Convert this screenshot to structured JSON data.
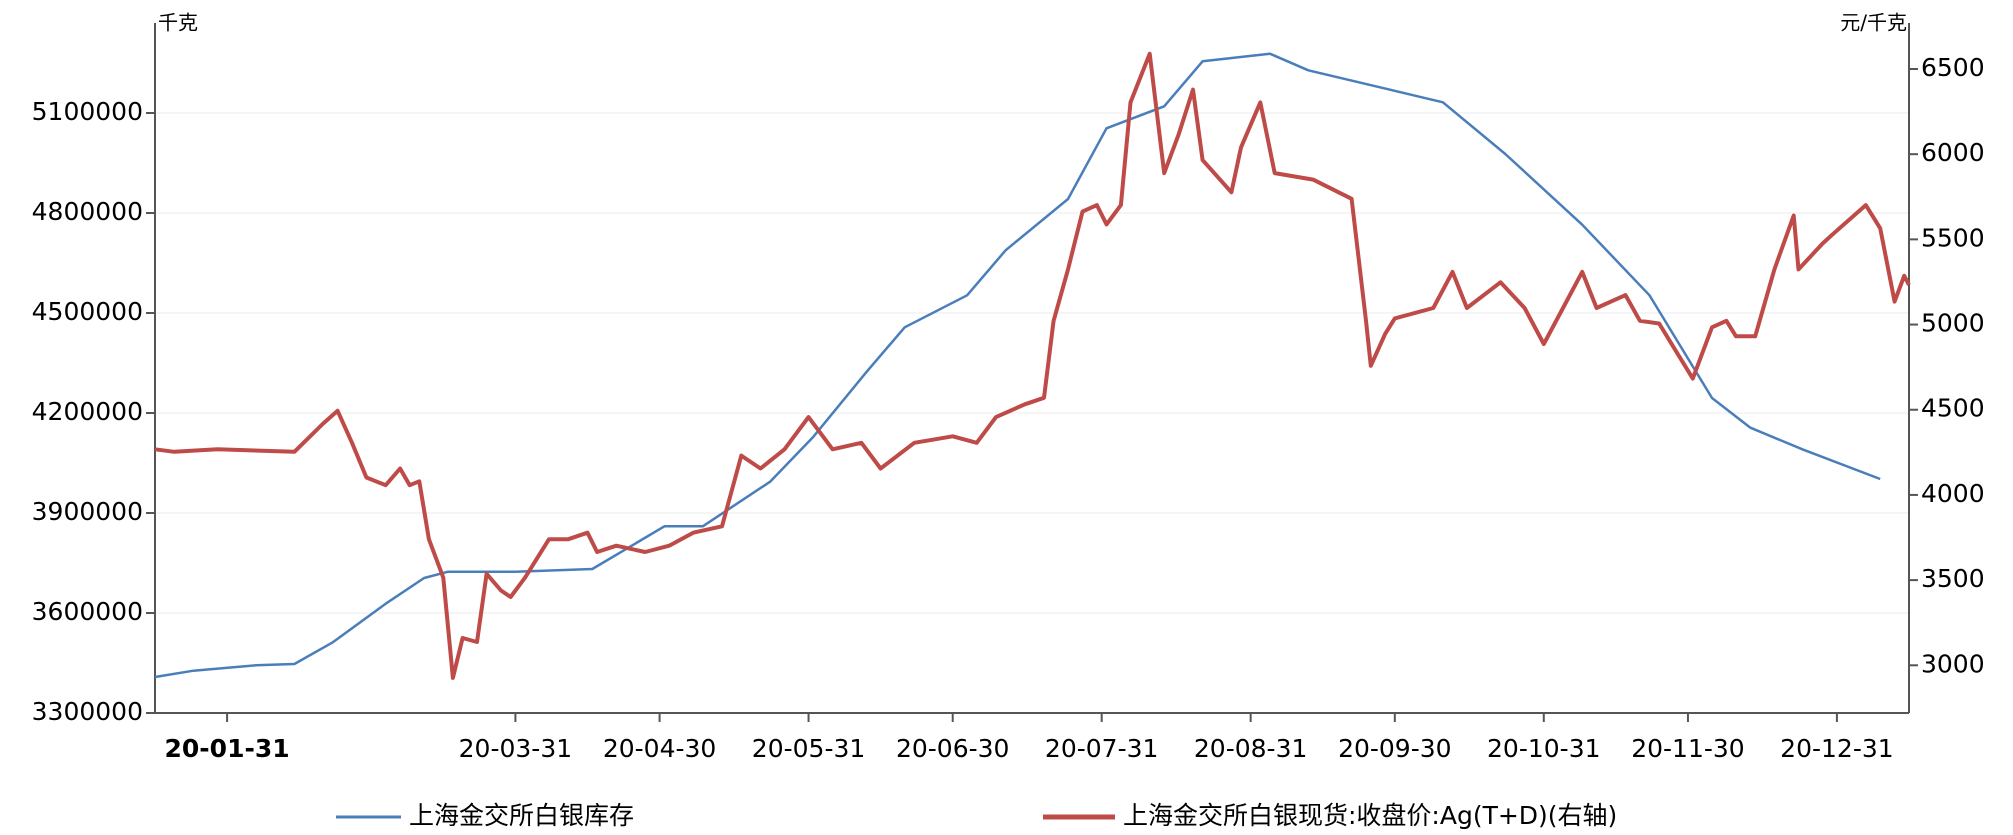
{
  "chart_data": {
    "type": "line",
    "ylabel": "千克",
    "y2label": "元/千克",
    "xlim": [
      "20-01-16",
      "21-01-15"
    ],
    "xticks": [
      "20-01-31",
      "20-03-31",
      "20-04-30",
      "20-05-31",
      "20-06-30",
      "20-07-31",
      "20-08-31",
      "20-09-30",
      "20-10-31",
      "20-11-30",
      "20-12-31"
    ],
    "ylim": [
      3300000,
      5370000
    ],
    "yticks": [
      3300000,
      3600000,
      3900000,
      4200000,
      4500000,
      4800000,
      5100000
    ],
    "y2lim": [
      2720,
      6770
    ],
    "y2ticks": [
      3000,
      3500,
      4000,
      4500,
      5000,
      5500,
      6000,
      6500
    ],
    "grid": true,
    "series": [
      {
        "name": "上海金交所白银库存",
        "color": "#4a7ebb",
        "x": [
          "20-01-16",
          "20-01-24",
          "20-02-06",
          "20-02-14",
          "20-02-22",
          "20-03-04",
          "20-03-12",
          "20-03-17",
          "20-03-31",
          "20-04-16",
          "20-04-24",
          "20-05-01",
          "20-05-09",
          "20-05-23",
          "20-06-01",
          "20-06-12",
          "20-06-20",
          "20-07-03",
          "20-07-11",
          "20-07-24",
          "20-08-01",
          "20-08-13",
          "20-08-21",
          "20-09-04",
          "20-09-12",
          "20-09-29",
          "20-10-10",
          "20-10-23",
          "20-11-08",
          "20-11-22",
          "20-12-05",
          "20-12-13",
          "20-12-24",
          "21-01-09"
        ],
        "values": [
          3408000,
          3427000,
          3443000,
          3447000,
          3512000,
          3628000,
          3705000,
          3724000,
          3724000,
          3732000,
          3800000,
          3860000,
          3860000,
          3994000,
          4129000,
          4322000,
          4457000,
          4553000,
          4688000,
          4842000,
          5054000,
          5120000,
          5255000,
          5278000,
          5228000,
          5170000,
          5132000,
          4977000,
          4765000,
          4553000,
          4245000,
          4156000,
          4090000,
          4002000
        ]
      },
      {
        "name": "上海金交所白银现货:收盘价:Ag(T+D)(右轴)",
        "color": "#be4b48",
        "axis": "y2",
        "x": [
          "20-01-16",
          "20-01-20",
          "20-01-29",
          "20-02-14",
          "20-02-20",
          "20-02-23",
          "20-02-26",
          "20-02-29",
          "20-03-04",
          "20-03-07",
          "20-03-09",
          "20-03-11",
          "20-03-13",
          "20-03-16",
          "20-03-18",
          "20-03-20",
          "20-03-23",
          "20-03-25",
          "20-03-28",
          "20-03-30",
          "20-04-02",
          "20-04-07",
          "20-04-11",
          "20-04-15",
          "20-04-17",
          "20-04-21",
          "20-04-27",
          "20-05-02",
          "20-05-07",
          "20-05-13",
          "20-05-17",
          "20-05-21",
          "20-05-26",
          "20-05-31",
          "20-06-05",
          "20-06-11",
          "20-06-15",
          "20-06-22",
          "20-06-30",
          "20-07-05",
          "20-07-09",
          "20-07-15",
          "20-07-19",
          "20-07-21",
          "20-07-24",
          "20-07-27",
          "20-07-30",
          "20-08-01",
          "20-08-04",
          "20-08-06",
          "20-08-10",
          "20-08-13",
          "20-08-16",
          "20-08-19",
          "20-08-21",
          "20-08-27",
          "20-08-29",
          "20-09-02",
          "20-09-05",
          "20-09-13",
          "20-09-21",
          "20-09-24",
          "20-09-25",
          "20-09-28",
          "20-09-30",
          "20-10-08",
          "20-10-12",
          "20-10-15",
          "20-10-22",
          "20-10-27",
          "20-10-31",
          "20-11-04",
          "20-11-08",
          "20-11-11",
          "20-11-17",
          "20-11-20",
          "20-11-24",
          "20-12-01",
          "20-12-05",
          "20-12-08",
          "20-12-10",
          "20-12-14",
          "20-12-18",
          "20-12-22",
          "20-12-23",
          "20-12-28",
          "20-12-30",
          "21-01-06",
          "21-01-09",
          "21-01-12",
          "21-01-14",
          "21-01-15"
        ],
        "values": [
          4268,
          4253,
          4268,
          4253,
          4419,
          4494,
          4306,
          4102,
          4057,
          4155,
          4057,
          4080,
          3740,
          3514,
          2926,
          3160,
          3137,
          3537,
          3439,
          3401,
          3514,
          3740,
          3740,
          3778,
          3665,
          3702,
          3665,
          3702,
          3778,
          3816,
          4231,
          4155,
          4268,
          4457,
          4268,
          4306,
          4155,
          4306,
          4344,
          4306,
          4457,
          4532,
          4570,
          5022,
          5324,
          5663,
          5701,
          5588,
          5701,
          6304,
          6590,
          5889,
          6115,
          6379,
          5965,
          5776,
          6040,
          6304,
          5889,
          5851,
          5738,
          5022,
          4758,
          4946,
          5036,
          5097,
          5309,
          5097,
          5248,
          5097,
          4886,
          5097,
          5309,
          5097,
          5173,
          5022,
          5006,
          4683,
          4984,
          5022,
          4931,
          4931,
          5324,
          5640,
          5324,
          5475,
          5527,
          5701,
          5565,
          5135,
          5286,
          5233
        ]
      }
    ]
  }
}
